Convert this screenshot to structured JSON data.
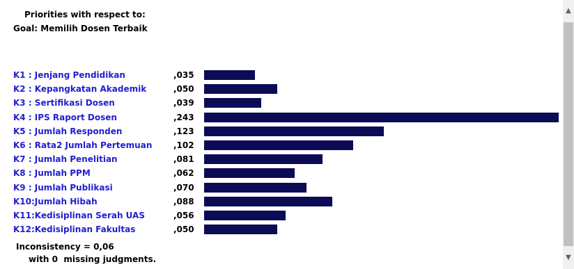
{
  "header": {
    "line1": "Priorities with respect to:",
    "line2": "Goal: Memilih Dosen Terbaik"
  },
  "criteria": [
    {
      "label": "K1 : Jenjang Pendidikan",
      "weight_text": ",035",
      "weight": 0.035
    },
    {
      "label": "K2 : Kepangkatan Akademik",
      "weight_text": ",050",
      "weight": 0.05
    },
    {
      "label": "K3 : Sertifikasi Dosen",
      "weight_text": ",039",
      "weight": 0.039
    },
    {
      "label": "K4 : IPS Raport Dosen",
      "weight_text": ",243",
      "weight": 0.243
    },
    {
      "label": "K5 : Jumlah Responden",
      "weight_text": ",123",
      "weight": 0.123
    },
    {
      "label": "K6 : Rata2 Jumlah Pertemuan",
      "weight_text": ",102",
      "weight": 0.102
    },
    {
      "label": "K7 : Jumlah Penelitian",
      "weight_text": ",081",
      "weight": 0.081
    },
    {
      "label": "K8 : Jumlah PPM",
      "weight_text": ",062",
      "weight": 0.062
    },
    {
      "label": "K9 : Jumlah Publikasi",
      "weight_text": ",070",
      "weight": 0.07
    },
    {
      "label": "K10:Jumlah Hibah",
      "weight_text": ",088",
      "weight": 0.088
    },
    {
      "label": "K11:Kedisiplinan Serah UAS",
      "weight_text": ",056",
      "weight": 0.056
    },
    {
      "label": "K12:Kedisiplinan Fakultas",
      "weight_text": ",050",
      "weight": 0.05
    }
  ],
  "footer": {
    "inconsistency": "Inconsistency = 0,06",
    "missing": "with 0  missing judgments."
  },
  "colors": {
    "bar": "#0c0c56",
    "label": "#1f1fd0"
  },
  "scrollbar": {
    "up_icon": "▲",
    "down_icon": "▼"
  }
}
